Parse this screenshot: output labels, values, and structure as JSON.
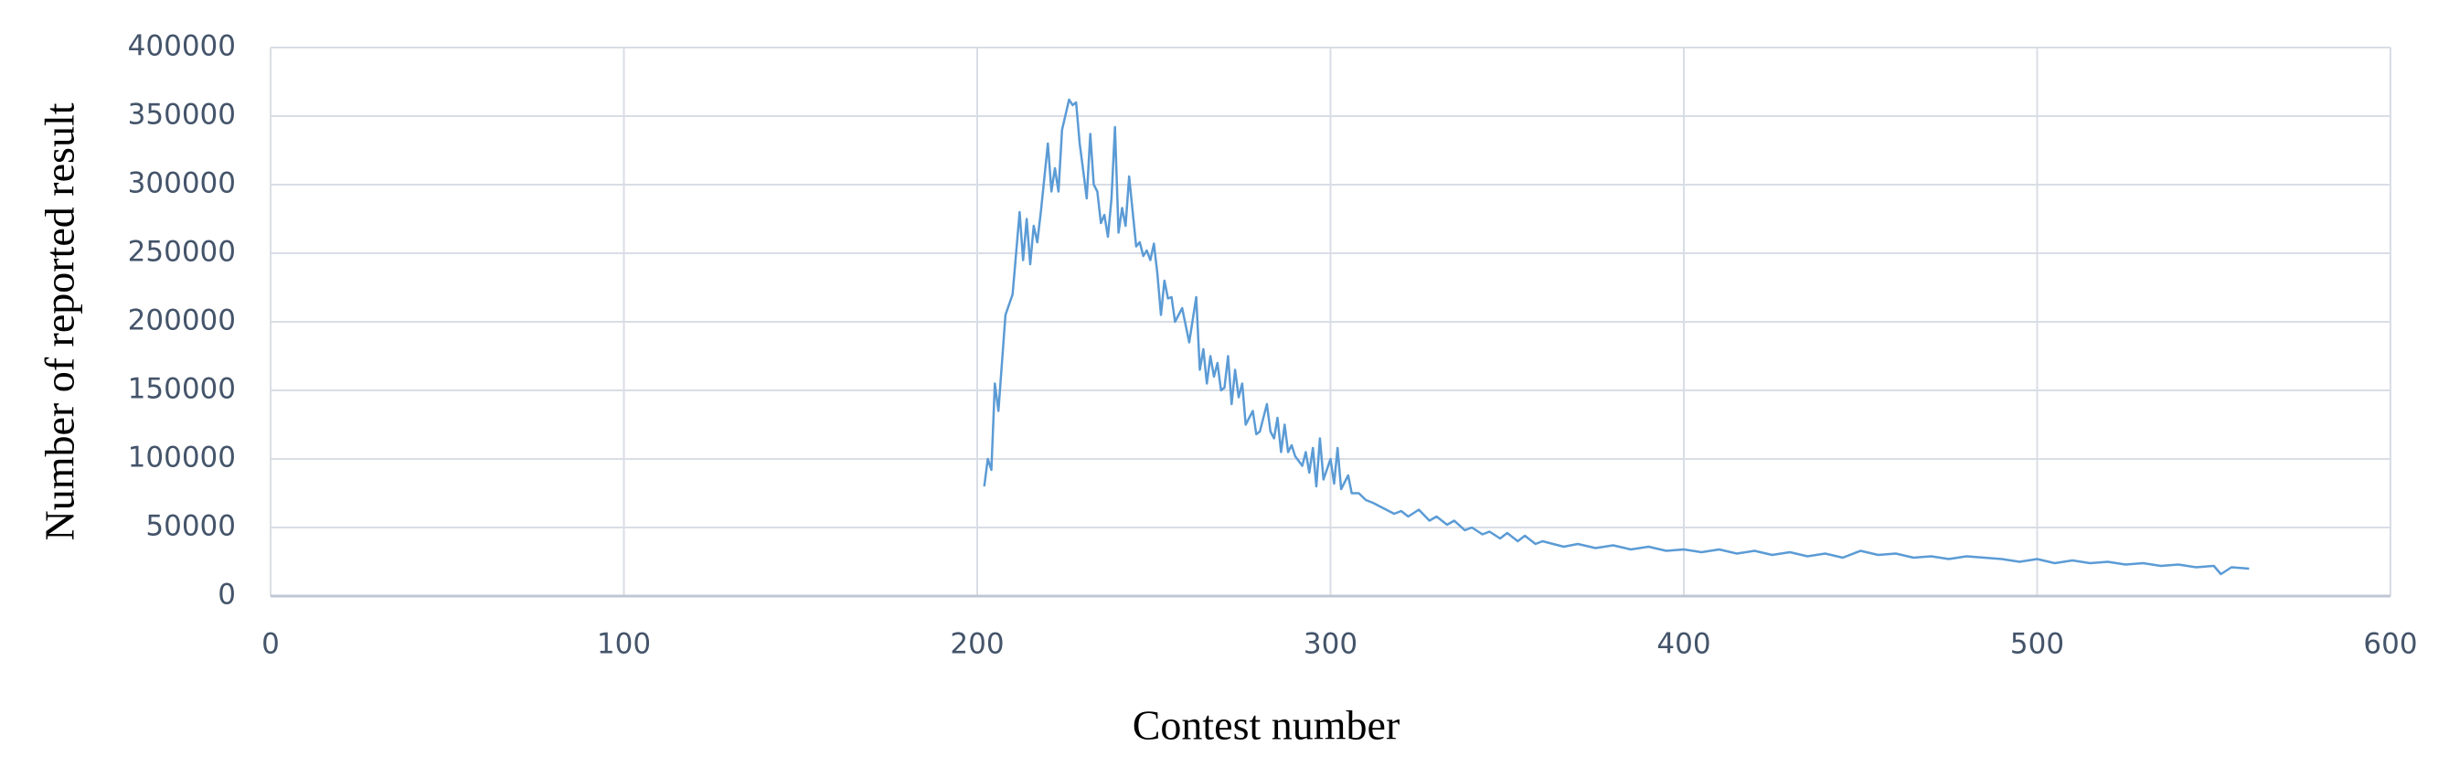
{
  "chart_data": {
    "type": "line",
    "xlabel": "Contest number",
    "ylabel": "Number of reported result",
    "x": [
      202,
      203,
      204,
      205,
      206,
      208,
      210,
      212,
      213,
      214,
      215,
      216,
      217,
      218,
      220,
      221,
      222,
      223,
      224,
      226,
      227,
      228,
      229,
      230,
      231,
      232,
      233,
      234,
      235,
      236,
      237,
      238,
      239,
      240,
      241,
      242,
      243,
      244,
      245,
      246,
      247,
      248,
      249,
      250,
      251,
      252,
      253,
      254,
      255,
      256,
      258,
      260,
      262,
      263,
      264,
      265,
      266,
      267,
      268,
      269,
      270,
      271,
      272,
      273,
      274,
      275,
      276,
      278,
      279,
      280,
      282,
      283,
      284,
      285,
      286,
      287,
      288,
      289,
      290,
      292,
      293,
      294,
      295,
      296,
      297,
      298,
      300,
      301,
      302,
      303,
      305,
      306,
      308,
      310,
      312,
      315,
      318,
      320,
      322,
      325,
      328,
      330,
      333,
      335,
      338,
      340,
      343,
      345,
      348,
      350,
      353,
      355,
      358,
      360,
      363,
      366,
      370,
      375,
      380,
      385,
      390,
      395,
      400,
      405,
      410,
      415,
      420,
      425,
      430,
      435,
      440,
      445,
      450,
      455,
      460,
      465,
      470,
      475,
      480,
      485,
      490,
      495,
      500,
      505,
      510,
      515,
      520,
      525,
      530,
      535,
      540,
      545,
      550,
      552,
      555,
      560
    ],
    "values": [
      80000,
      100000,
      92000,
      155000,
      135000,
      205000,
      220000,
      280000,
      245000,
      275000,
      242000,
      270000,
      258000,
      280000,
      330000,
      295000,
      312000,
      295000,
      340000,
      362000,
      358000,
      360000,
      330000,
      310000,
      290000,
      337000,
      300000,
      295000,
      272000,
      278000,
      262000,
      290000,
      342000,
      265000,
      283000,
      270000,
      306000,
      280000,
      255000,
      258000,
      248000,
      252000,
      245000,
      257000,
      235000,
      205000,
      230000,
      217000,
      218000,
      200000,
      210000,
      185000,
      218000,
      165000,
      180000,
      155000,
      175000,
      160000,
      170000,
      150000,
      152000,
      175000,
      140000,
      165000,
      145000,
      155000,
      125000,
      135000,
      118000,
      120000,
      140000,
      120000,
      115000,
      130000,
      105000,
      125000,
      105000,
      110000,
      102000,
      95000,
      105000,
      90000,
      108000,
      80000,
      115000,
      85000,
      100000,
      82000,
      108000,
      78000,
      88000,
      75000,
      75000,
      70000,
      68000,
      64000,
      60000,
      62000,
      58000,
      63000,
      55000,
      58000,
      52000,
      55000,
      48000,
      50000,
      45000,
      47000,
      42000,
      46000,
      40000,
      44000,
      38000,
      40000,
      38000,
      36000,
      38000,
      35000,
      37000,
      34000,
      36000,
      33000,
      34000,
      32000,
      34000,
      31000,
      33000,
      30000,
      32000,
      29000,
      31000,
      28000,
      33000,
      30000,
      31000,
      28000,
      29000,
      27000,
      29000,
      28000,
      27000,
      25000,
      27000,
      24000,
      26000,
      24000,
      25000,
      23000,
      24000,
      22000,
      23000,
      21000,
      22000,
      16000,
      21000,
      20000
    ],
    "color": "#5b9bd5",
    "xlim": [
      0,
      600
    ],
    "xticks": [
      0,
      100,
      200,
      300,
      400,
      500,
      600
    ],
    "ylim": [
      0,
      400000
    ],
    "yticks": [
      0,
      50000,
      100000,
      150000,
      200000,
      250000,
      300000,
      350000,
      400000
    ],
    "grid": true
  }
}
